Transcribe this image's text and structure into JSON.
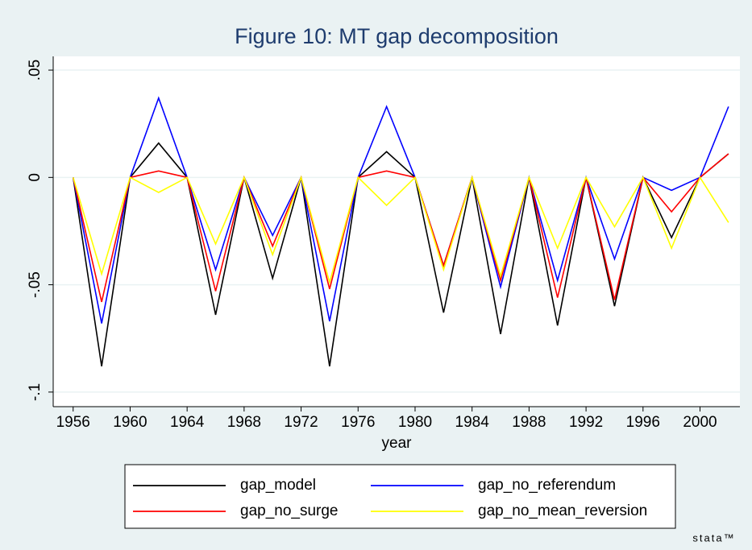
{
  "chart_data": {
    "type": "line",
    "title": "Figure 10: MT gap decomposition",
    "x_label": "year",
    "x": [
      1956,
      1958,
      1960,
      1962,
      1964,
      1966,
      1968,
      1970,
      1972,
      1974,
      1976,
      1978,
      1980,
      1982,
      1984,
      1986,
      1988,
      1990,
      1992,
      1994,
      1996,
      1998,
      2000,
      2002
    ],
    "series": [
      {
        "name": "gap_model",
        "color": "#000000",
        "values": [
          0,
          -0.088,
          0,
          0.016,
          0,
          -0.064,
          0,
          -0.047,
          0,
          -0.088,
          0,
          0.012,
          0,
          -0.063,
          0,
          -0.073,
          0,
          -0.069,
          0,
          -0.06,
          0,
          -0.028,
          0,
          0.011
        ]
      },
      {
        "name": "gap_no_referendum",
        "color": "#0000ff",
        "values": [
          0,
          -0.068,
          0,
          0.037,
          0,
          -0.043,
          0,
          -0.027,
          0,
          -0.067,
          0,
          0.033,
          0,
          -0.041,
          0,
          -0.051,
          0,
          -0.048,
          0,
          -0.038,
          0,
          -0.006,
          0,
          0.033
        ]
      },
      {
        "name": "gap_no_surge",
        "color": "#ff0000",
        "values": [
          0,
          -0.058,
          0,
          0.003,
          0,
          -0.053,
          0,
          -0.032,
          0,
          -0.052,
          0,
          0.003,
          0,
          -0.041,
          0,
          -0.048,
          0,
          -0.056,
          0,
          -0.057,
          0,
          -0.016,
          0,
          0.011
        ]
      },
      {
        "name": "gap_no_mean_reversion",
        "color": "#ffff00",
        "values": [
          0,
          -0.045,
          0,
          -0.007,
          0,
          -0.031,
          0,
          -0.036,
          0,
          -0.049,
          0,
          -0.013,
          0,
          -0.043,
          0,
          -0.046,
          0,
          -0.033,
          0,
          -0.023,
          0,
          -0.033,
          0,
          -0.021
        ]
      }
    ],
    "xlim": [
      1954.6,
      2002.8
    ],
    "xticks": [
      1956,
      1960,
      1964,
      1968,
      1972,
      1976,
      1980,
      1984,
      1988,
      1992,
      1996,
      2000
    ],
    "ylim": [
      -0.1068,
      0.0564
    ],
    "yticks": [
      {
        "value": -0.1,
        "label": "-.1"
      },
      {
        "value": -0.05,
        "label": "-.05"
      },
      0,
      {
        "value": 0.05,
        "label": ".05"
      }
    ],
    "grid": true,
    "legend": "bottom",
    "watermark": "stata™"
  }
}
